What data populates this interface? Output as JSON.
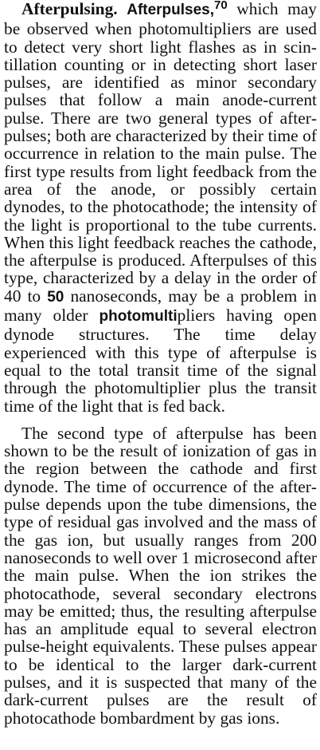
{
  "section": {
    "heading": "Afterpulsing.",
    "p1": {
      "lead": "Afterpulses,",
      "ref": "70",
      "a": " which may be observed when photomultipliers are used to detect very short light flashes as in scin­tillation counting or in detecting short laser pulses, are identified as minor secondary pulses that follow a main anode-current pulse. There are two general types of after­pulses; both are characterized by their time of occurrence in relation to the main pulse. The first type results from light feedback from the area of the anode, or possibly cer­tain dynodes, to the photocathode; the in­tensity of the light is proportional to the tube currents. When this light feedback reaches the cathode, the afterpulse is produced. Afterpulses of this type, characterized by a delay in the order of 40 to ",
      "num50": "50",
      "b": " nanoseconds, may be a problem in many older ",
      "photomulti": "photomulti­",
      "c": "pliers having open dynode structures. The time delay experienced with this type of afterpulse is equal to the total transit time of the signal through the photomultiplier plus the transit time of the light that is fed back."
    },
    "p2": "The second type of afterpulse has been shown to be the result of ionization of gas in the region between the cathode and first dynode. The time of occurrence of the after­pulse depends upon the tube dimensions, the type of residual gas involved and the mass of the gas ion, but usually ranges from 200 nanoseconds to well over 1 microsecond after the main pulse. When the ion strikes the photocathode, several secondary elec­trons may be emitted; thus, the resulting afterpulse has an amplitude equal to several electron pulse-height equivalents. These pulses appear to be identical to the larger dark-current pulses, and it is suspected that many of the dark-current pulses are the re­sult of photocathode bombardment by gas ions."
  }
}
